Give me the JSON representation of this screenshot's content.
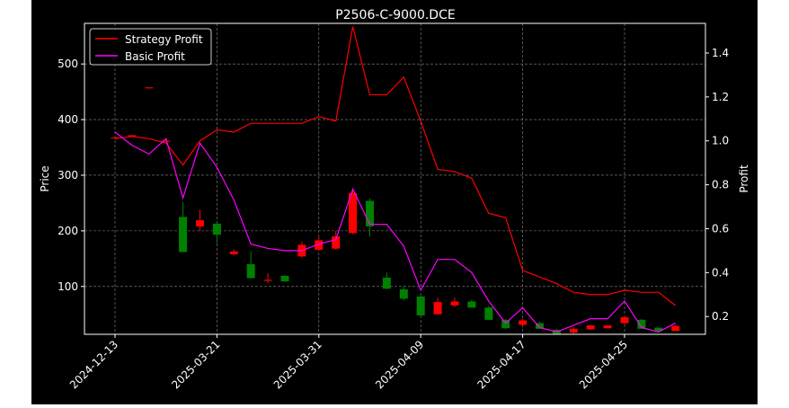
{
  "chart_data": {
    "type": "candlestick",
    "title": "P2506-C-9000.DCE",
    "ylabel_left": "Price",
    "ylabel_right": "Profit",
    "xlabel": "",
    "ylim_left": [
      14,
      573
    ],
    "ylim_right": [
      0.119,
      1.535
    ],
    "grid": true,
    "legend_position": "top-left",
    "colors": {
      "background": "#000000",
      "up": "#ff0000",
      "down": "#008000",
      "strategy": "#ff0000",
      "basic": "#ff00ff",
      "text": "#ffffff"
    },
    "x_tick_labels": [
      "2024-12-13",
      "2025-03-21",
      "2025-03-31",
      "2025-04-09",
      "2025-04-17",
      "2025-04-25"
    ],
    "y_ticks_left": [
      100,
      200,
      300,
      400,
      500
    ],
    "y_ticks_right": [
      "0.2",
      "0.4",
      "0.6",
      "0.8",
      "1.0",
      "1.2",
      "1.4"
    ],
    "y_ticks_right_values": [
      0.2,
      0.4,
      0.6,
      0.8,
      1.0,
      1.2,
      1.4
    ],
    "x_tick_indices": [
      0,
      6,
      12,
      18,
      24,
      30
    ],
    "candles": [
      {
        "o": 368,
        "h": 368,
        "l": 368,
        "c": 368
      },
      {
        "o": 372,
        "h": 372,
        "l": 372,
        "c": 372
      },
      {
        "o": 458,
        "h": 458,
        "l": 458,
        "c": 458
      },
      {
        "o": 362,
        "h": 362,
        "l": 362,
        "c": 362
      },
      {
        "o": 225,
        "h": 252,
        "l": 162,
        "c": 162
      },
      {
        "o": 208,
        "h": 238,
        "l": 200,
        "c": 219
      },
      {
        "o": 213,
        "h": 216,
        "l": 178,
        "c": 193
      },
      {
        "o": 158,
        "h": 167,
        "l": 156,
        "c": 163
      },
      {
        "o": 140,
        "h": 163,
        "l": 115,
        "c": 115
      },
      {
        "o": 112,
        "h": 124,
        "l": 106,
        "c": 112
      },
      {
        "o": 119,
        "h": 120,
        "l": 109,
        "c": 109
      },
      {
        "o": 154,
        "h": 181,
        "l": 152,
        "c": 175
      },
      {
        "o": 166,
        "h": 190,
        "l": 164,
        "c": 183
      },
      {
        "o": 168,
        "h": 200,
        "l": 166,
        "c": 190
      },
      {
        "o": 196,
        "h": 272,
        "l": 194,
        "c": 268
      },
      {
        "o": 254,
        "h": 258,
        "l": 190,
        "c": 208
      },
      {
        "o": 116,
        "h": 125,
        "l": 95,
        "c": 96
      },
      {
        "o": 95,
        "h": 102,
        "l": 75,
        "c": 78
      },
      {
        "o": 82,
        "h": 86,
        "l": 48,
        "c": 48
      },
      {
        "o": 50,
        "h": 80,
        "l": 50,
        "c": 72
      },
      {
        "o": 66,
        "h": 80,
        "l": 63,
        "c": 73
      },
      {
        "o": 73,
        "h": 76,
        "l": 62,
        "c": 62
      },
      {
        "o": 62,
        "h": 65,
        "l": 40,
        "c": 40
      },
      {
        "o": 40,
        "h": 42,
        "l": 23,
        "c": 25
      },
      {
        "o": 31,
        "h": 42,
        "l": 30,
        "c": 39
      },
      {
        "o": 34,
        "h": 37,
        "l": 24,
        "c": 24
      },
      {
        "o": 22,
        "h": 24,
        "l": 15,
        "c": 15
      },
      {
        "o": 17,
        "h": 27,
        "l": 15,
        "c": 24
      },
      {
        "o": 23,
        "h": 31,
        "l": 22,
        "c": 30
      },
      {
        "o": 25,
        "h": 30,
        "l": 24,
        "c": 30
      },
      {
        "o": 34,
        "h": 46,
        "l": 32,
        "c": 45
      },
      {
        "o": 40,
        "h": 42,
        "l": 24,
        "c": 24
      },
      {
        "o": 26,
        "h": 26,
        "l": 19,
        "c": 20
      },
      {
        "o": 20,
        "h": 30,
        "l": 20,
        "c": 29
      }
    ],
    "series": [
      {
        "name": "Strategy Profit",
        "values": [
          1.01,
          1.02,
          1.01,
          0.99,
          0.89,
          1.0,
          1.05,
          1.04,
          1.08,
          1.08,
          1.08,
          1.08,
          1.11,
          1.09,
          1.52,
          1.21,
          1.21,
          1.29,
          1.09,
          0.87,
          0.86,
          0.83,
          0.67,
          0.65,
          0.41,
          0.38,
          0.35,
          0.31,
          0.3,
          0.3,
          0.32,
          0.31,
          0.31,
          0.25
        ]
      },
      {
        "name": "Basic Profit",
        "values": [
          1.04,
          0.98,
          0.94,
          1.01,
          0.74,
          0.99,
          0.88,
          0.73,
          0.53,
          0.51,
          0.5,
          0.5,
          0.53,
          0.55,
          0.78,
          0.62,
          0.62,
          0.52,
          0.32,
          0.46,
          0.46,
          0.4,
          0.27,
          0.17,
          0.24,
          0.15,
          0.13,
          0.16,
          0.19,
          0.19,
          0.27,
          0.15,
          0.13,
          0.17
        ]
      }
    ]
  }
}
